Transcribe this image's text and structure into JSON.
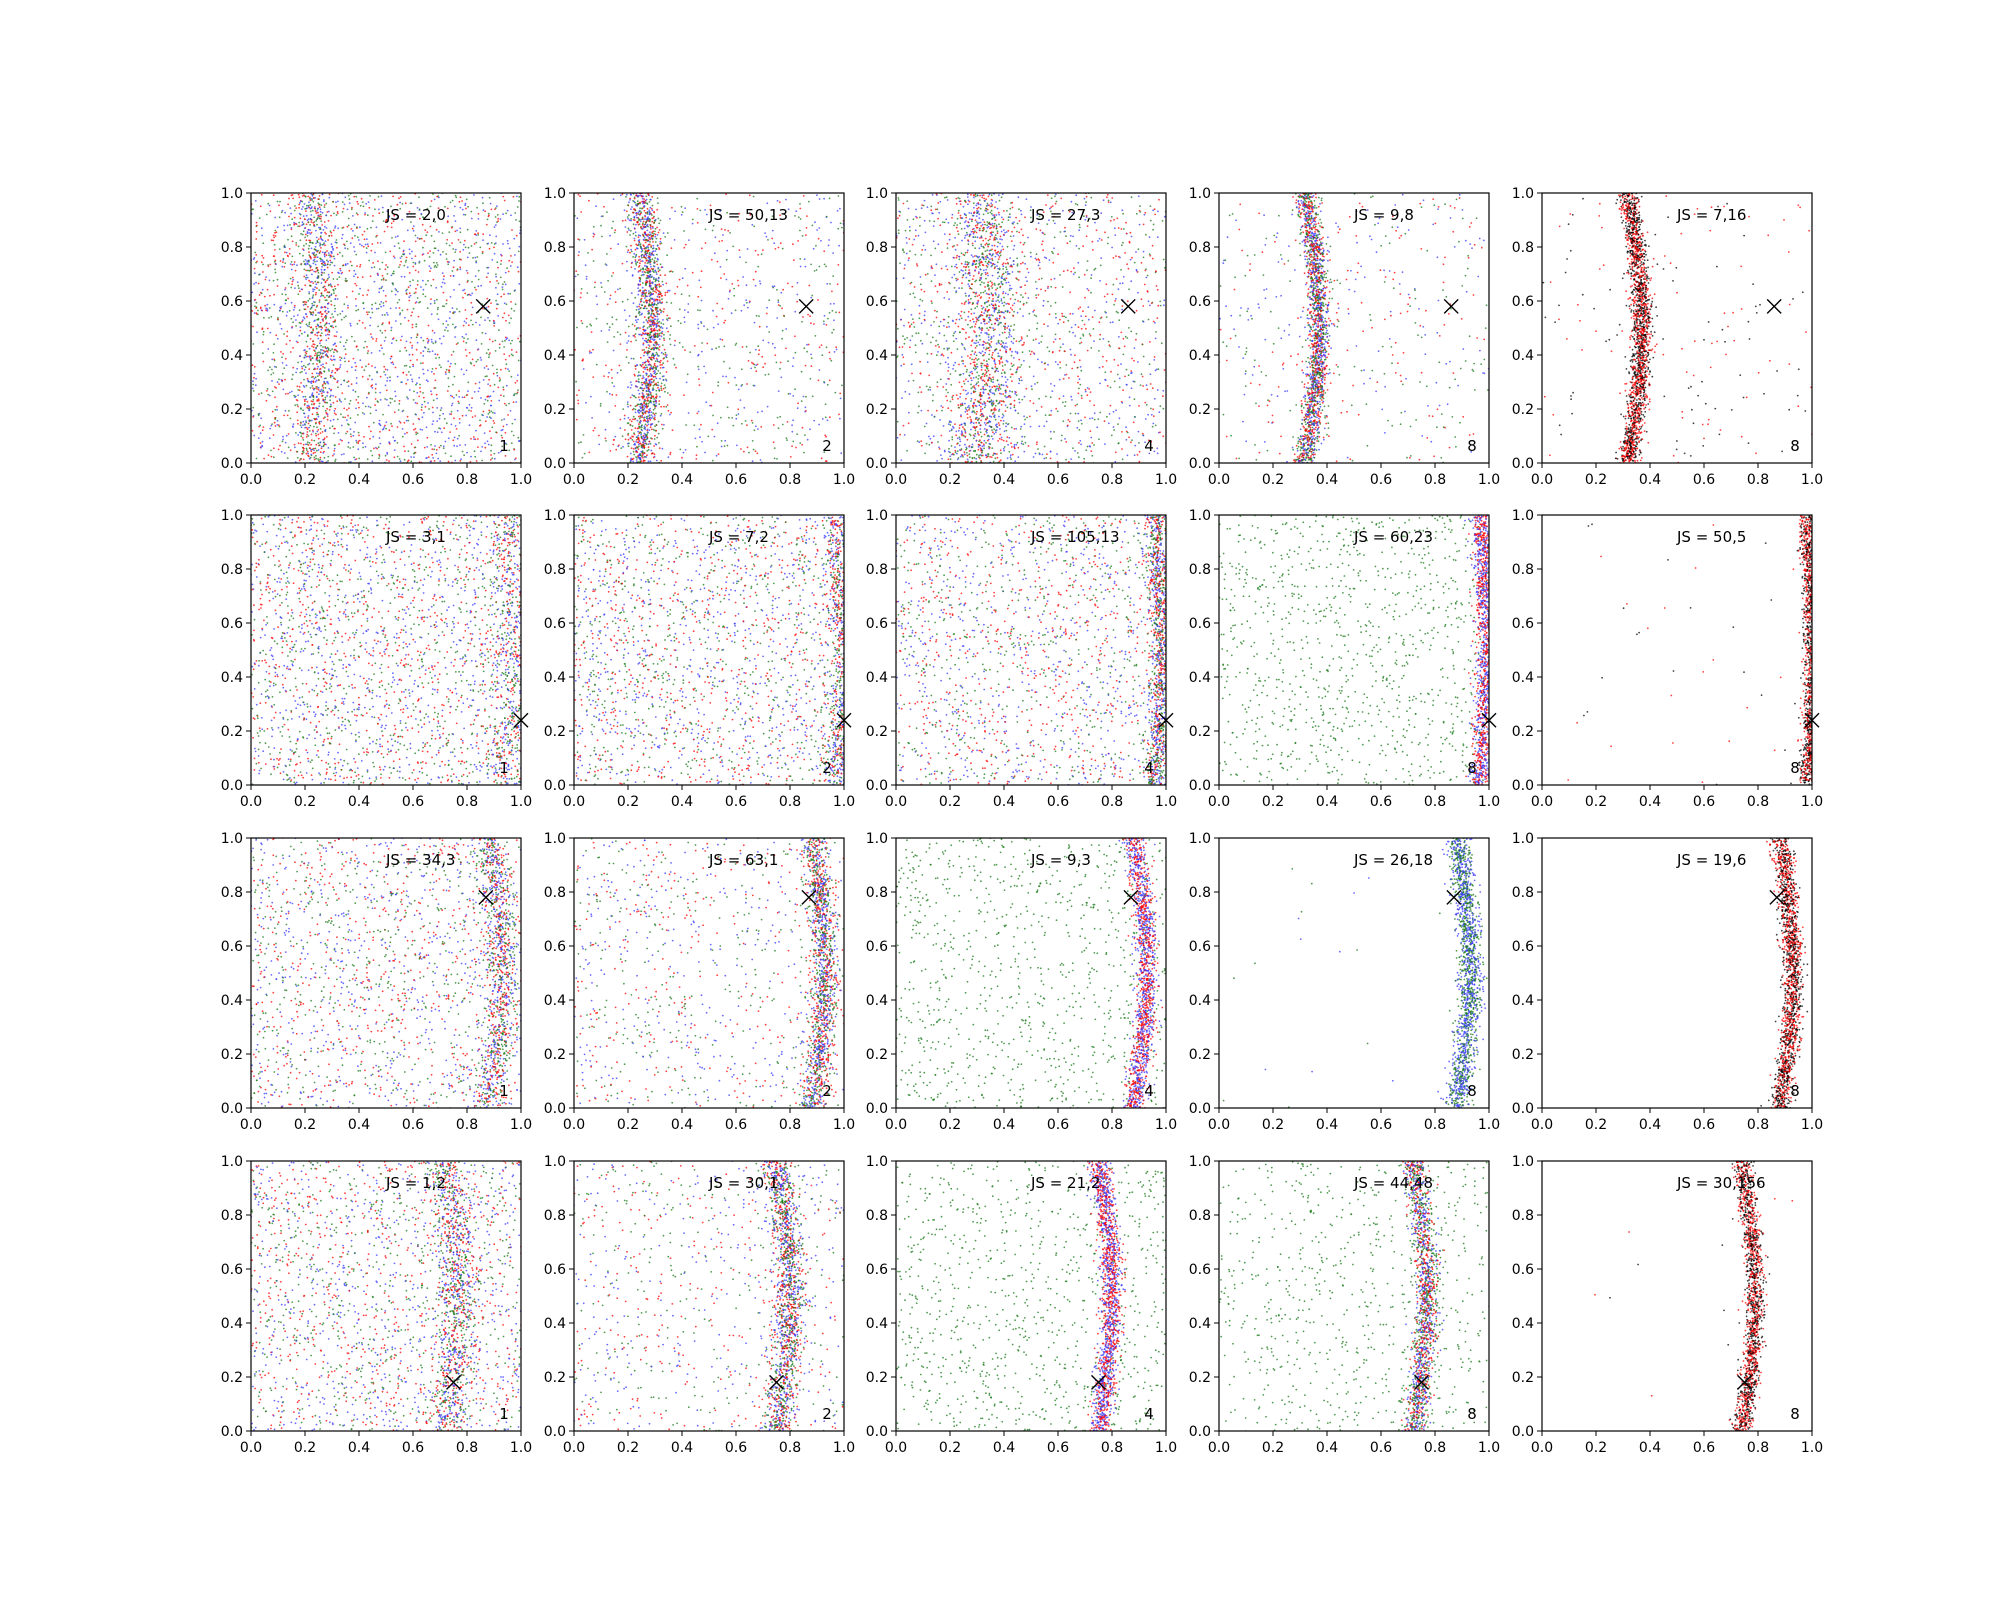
{
  "figure": {
    "rows": 4,
    "cols": 5
  },
  "chart_data": [
    {
      "type": "scatter",
      "row": 0,
      "col": 0,
      "label": "JS = 2,0",
      "corner_label": "1",
      "marker": {
        "x": 0.86,
        "y": 0.58
      },
      "curve": {
        "center": 0.22,
        "amp": 0.04,
        "width": 0.035
      },
      "palette": [
        "green",
        "blue",
        "red"
      ],
      "counts": {
        "band": 800,
        "noise": 2100
      },
      "xlim": [
        0,
        1
      ],
      "ylim": [
        0,
        1
      ],
      "xticks": [
        "0.0",
        "0.2",
        "0.4",
        "0.6",
        "0.8",
        "1.0"
      ],
      "yticks": [
        "0.0",
        "0.2",
        "0.4",
        "0.6",
        "0.8",
        "1.0"
      ]
    },
    {
      "type": "scatter",
      "row": 0,
      "col": 1,
      "label": "JS = 50,13",
      "corner_label": "2",
      "marker": {
        "x": 0.86,
        "y": 0.58
      },
      "curve": {
        "center": 0.24,
        "amp": 0.05,
        "width": 0.028
      },
      "palette": [
        "blue",
        "green",
        "red"
      ],
      "counts": {
        "band": 1500,
        "noise": 800
      },
      "xlim": [
        0,
        1
      ],
      "ylim": [
        0,
        1
      ],
      "xticks": [
        "0.0",
        "0.2",
        "0.4",
        "0.6",
        "0.8",
        "1.0"
      ],
      "yticks": [
        "0.0",
        "0.2",
        "0.4",
        "0.6",
        "0.8",
        "1.0"
      ]
    },
    {
      "type": "scatter",
      "row": 0,
      "col": 2,
      "label": "JS = 27,3",
      "corner_label": "4",
      "marker": {
        "x": 0.86,
        "y": 0.58
      },
      "curve": {
        "center": 0.3,
        "amp": 0.05,
        "width": 0.06
      },
      "palette": [
        "blue",
        "red",
        "green"
      ],
      "counts": {
        "band": 1300,
        "noise": 1300
      },
      "xlim": [
        0,
        1
      ],
      "ylim": [
        0,
        1
      ],
      "xticks": [
        "0.0",
        "0.2",
        "0.4",
        "0.6",
        "0.8",
        "1.0"
      ],
      "yticks": [
        "0.0",
        "0.2",
        "0.4",
        "0.6",
        "0.8",
        "1.0"
      ]
    },
    {
      "type": "scatter",
      "row": 0,
      "col": 3,
      "label": "JS = 9,8",
      "corner_label": "8",
      "marker": {
        "x": 0.86,
        "y": 0.58
      },
      "curve": {
        "center": 0.32,
        "amp": 0.05,
        "width": 0.02
      },
      "palette": [
        "red",
        "blue",
        "green"
      ],
      "counts": {
        "band": 1800,
        "noise": 450
      },
      "xlim": [
        0,
        1
      ],
      "ylim": [
        0,
        1
      ],
      "xticks": [
        "0.0",
        "0.2",
        "0.4",
        "0.6",
        "0.8",
        "1.0"
      ],
      "yticks": [
        "0.0",
        "0.2",
        "0.4",
        "0.6",
        "0.8",
        "1.0"
      ]
    },
    {
      "type": "scatter",
      "row": 0,
      "col": 4,
      "label": "JS = 7,16",
      "corner_label": "8",
      "marker": {
        "x": 0.86,
        "y": 0.58
      },
      "curve": {
        "center": 0.32,
        "amp": 0.05,
        "width": 0.018
      },
      "palette": [
        "red",
        "black"
      ],
      "counts": {
        "band": 1900,
        "noise": 170
      },
      "xlim": [
        0,
        1
      ],
      "ylim": [
        0,
        1
      ],
      "xticks": [
        "0.0",
        "0.2",
        "0.4",
        "0.6",
        "0.8",
        "1.0"
      ],
      "yticks": [
        "0.0",
        "0.2",
        "0.4",
        "0.6",
        "0.8",
        "1.0"
      ]
    },
    {
      "type": "scatter",
      "row": 1,
      "col": 0,
      "label": "JS = 3,1",
      "corner_label": "1",
      "marker": {
        "x": 1.0,
        "y": 0.24
      },
      "curve": {
        "center": 0.94,
        "amp": 0.03,
        "width": 0.04
      },
      "palette": [
        "green",
        "blue",
        "red"
      ],
      "counts": {
        "band": 600,
        "noise": 2200
      },
      "xlim": [
        0,
        1
      ],
      "ylim": [
        0,
        1
      ],
      "xticks": [
        "0.0",
        "0.2",
        "0.4",
        "0.6",
        "0.8",
        "1.0"
      ],
      "yticks": [
        "0.0",
        "0.2",
        "0.4",
        "0.6",
        "0.8",
        "1.0"
      ]
    },
    {
      "type": "scatter",
      "row": 1,
      "col": 1,
      "label": "JS = 7,2",
      "corner_label": "2",
      "marker": {
        "x": 1.0,
        "y": 0.24
      },
      "curve": {
        "center": 0.97,
        "amp": 0.02,
        "width": 0.025
      },
      "palette": [
        "red",
        "green",
        "blue"
      ],
      "counts": {
        "band": 700,
        "noise": 2000
      },
      "xlim": [
        0,
        1
      ],
      "ylim": [
        0,
        1
      ],
      "xticks": [
        "0.0",
        "0.2",
        "0.4",
        "0.6",
        "0.8",
        "1.0"
      ],
      "yticks": [
        "0.0",
        "0.2",
        "0.4",
        "0.6",
        "0.8",
        "1.0"
      ]
    },
    {
      "type": "scatter",
      "row": 1,
      "col": 2,
      "label": "JS = 105,13",
      "corner_label": "4",
      "marker": {
        "x": 1.0,
        "y": 0.24
      },
      "curve": {
        "center": 0.96,
        "amp": 0.02,
        "width": 0.02
      },
      "palette": [
        "red",
        "green",
        "blue"
      ],
      "counts": {
        "band": 1100,
        "noise": 1700
      },
      "xlim": [
        0,
        1
      ],
      "ylim": [
        0,
        1
      ],
      "xticks": [
        "0.0",
        "0.2",
        "0.4",
        "0.6",
        "0.8",
        "1.0"
      ],
      "yticks": [
        "0.0",
        "0.2",
        "0.4",
        "0.6",
        "0.8",
        "1.0"
      ]
    },
    {
      "type": "scatter",
      "row": 1,
      "col": 3,
      "label": "JS = 60,23",
      "corner_label": "8",
      "marker": {
        "x": 1.0,
        "y": 0.24
      },
      "curve": {
        "center": 0.97,
        "amp": 0.02,
        "width": 0.02
      },
      "palette": [
        "red",
        "blue"
      ],
      "counts": {
        "band": 1300,
        "noise": 1000
      },
      "noise_palette": [
        "green"
      ],
      "xlim": [
        0,
        1
      ],
      "ylim": [
        0,
        1
      ],
      "xticks": [
        "0.0",
        "0.2",
        "0.4",
        "0.6",
        "0.8",
        "1.0"
      ],
      "yticks": [
        "0.0",
        "0.2",
        "0.4",
        "0.6",
        "0.8",
        "1.0"
      ]
    },
    {
      "type": "scatter",
      "row": 1,
      "col": 4,
      "label": "JS = 50,5",
      "corner_label": "8",
      "marker": {
        "x": 1.0,
        "y": 0.24
      },
      "curve": {
        "center": 0.98,
        "amp": 0.02,
        "width": 0.016
      },
      "palette": [
        "red",
        "black"
      ],
      "counts": {
        "band": 1400,
        "noise": 40
      },
      "xlim": [
        0,
        1
      ],
      "ylim": [
        0,
        1
      ],
      "xticks": [
        "0.0",
        "0.2",
        "0.4",
        "0.6",
        "0.8",
        "1.0"
      ],
      "yticks": [
        "0.0",
        "0.2",
        "0.4",
        "0.6",
        "0.8",
        "1.0"
      ]
    },
    {
      "type": "scatter",
      "row": 2,
      "col": 0,
      "label": "JS = 34,3",
      "corner_label": "1",
      "marker": {
        "x": 0.87,
        "y": 0.78
      },
      "curve": {
        "center": 0.88,
        "amp": 0.05,
        "width": 0.03
      },
      "palette": [
        "green",
        "blue",
        "red"
      ],
      "counts": {
        "band": 1000,
        "noise": 1700
      },
      "xlim": [
        0,
        1
      ],
      "ylim": [
        0,
        1
      ],
      "xticks": [
        "0.0",
        "0.2",
        "0.4",
        "0.6",
        "0.8",
        "1.0"
      ],
      "yticks": [
        "0.0",
        "0.2",
        "0.4",
        "0.6",
        "0.8",
        "1.0"
      ]
    },
    {
      "type": "scatter",
      "row": 2,
      "col": 1,
      "label": "JS = 63,1",
      "corner_label": "2",
      "marker": {
        "x": 0.87,
        "y": 0.78
      },
      "curve": {
        "center": 0.88,
        "amp": 0.05,
        "width": 0.025
      },
      "palette": [
        "red",
        "green",
        "blue"
      ],
      "counts": {
        "band": 1400,
        "noise": 900
      },
      "xlim": [
        0,
        1
      ],
      "ylim": [
        0,
        1
      ],
      "xticks": [
        "0.0",
        "0.2",
        "0.4",
        "0.6",
        "0.8",
        "1.0"
      ],
      "yticks": [
        "0.0",
        "0.2",
        "0.4",
        "0.6",
        "0.8",
        "1.0"
      ]
    },
    {
      "type": "scatter",
      "row": 2,
      "col": 2,
      "label": "JS = 9,3",
      "corner_label": "4",
      "marker": {
        "x": 0.87,
        "y": 0.78
      },
      "curve": {
        "center": 0.88,
        "amp": 0.05,
        "width": 0.02
      },
      "palette": [
        "red",
        "blue"
      ],
      "counts": {
        "band": 1400,
        "noise": 900
      },
      "noise_palette": [
        "green"
      ],
      "xlim": [
        0,
        1
      ],
      "ylim": [
        0,
        1
      ],
      "xticks": [
        "0.0",
        "0.2",
        "0.4",
        "0.6",
        "0.8",
        "1.0"
      ],
      "yticks": [
        "0.0",
        "0.2",
        "0.4",
        "0.6",
        "0.8",
        "1.0"
      ]
    },
    {
      "type": "scatter",
      "row": 2,
      "col": 3,
      "label": "JS = 26,18",
      "corner_label": "8",
      "marker": {
        "x": 0.87,
        "y": 0.78
      },
      "curve": {
        "center": 0.88,
        "amp": 0.05,
        "width": 0.022
      },
      "palette": [
        "green",
        "blue"
      ],
      "counts": {
        "band": 1600,
        "noise": 20
      },
      "xlim": [
        0,
        1
      ],
      "ylim": [
        0,
        1
      ],
      "xticks": [
        "0.0",
        "0.2",
        "0.4",
        "0.6",
        "0.8",
        "1.0"
      ],
      "yticks": [
        "0.0",
        "0.2",
        "0.4",
        "0.6",
        "0.8",
        "1.0"
      ]
    },
    {
      "type": "scatter",
      "row": 2,
      "col": 4,
      "label": "JS = 19,6",
      "corner_label": "8",
      "marker": {
        "x": 0.87,
        "y": 0.78
      },
      "curve": {
        "center": 0.88,
        "amp": 0.05,
        "width": 0.018
      },
      "palette": [
        "red",
        "black"
      ],
      "counts": {
        "band": 1700,
        "noise": 0
      },
      "xlim": [
        0,
        1
      ],
      "ylim": [
        0,
        1
      ],
      "xticks": [
        "0.0",
        "0.2",
        "0.4",
        "0.6",
        "0.8",
        "1.0"
      ],
      "yticks": [
        "0.0",
        "0.2",
        "0.4",
        "0.6",
        "0.8",
        "1.0"
      ]
    },
    {
      "type": "scatter",
      "row": 3,
      "col": 0,
      "label": "JS = 1,2",
      "corner_label": "1",
      "marker": {
        "x": 0.75,
        "y": 0.18
      },
      "curve": {
        "center": 0.72,
        "amp": 0.05,
        "width": 0.04
      },
      "palette": [
        "green",
        "blue",
        "red"
      ],
      "counts": {
        "band": 1000,
        "noise": 1900
      },
      "xlim": [
        0,
        1
      ],
      "ylim": [
        0,
        1
      ],
      "xticks": [
        "0.0",
        "0.2",
        "0.4",
        "0.6",
        "0.8",
        "1.0"
      ],
      "yticks": [
        "0.0",
        "0.2",
        "0.4",
        "0.6",
        "0.8",
        "1.0"
      ]
    },
    {
      "type": "scatter",
      "row": 3,
      "col": 1,
      "label": "JS = 30,1",
      "corner_label": "2",
      "marker": {
        "x": 0.75,
        "y": 0.18
      },
      "curve": {
        "center": 0.75,
        "amp": 0.05,
        "width": 0.028
      },
      "palette": [
        "red",
        "green",
        "blue"
      ],
      "counts": {
        "band": 1500,
        "noise": 800
      },
      "xlim": [
        0,
        1
      ],
      "ylim": [
        0,
        1
      ],
      "xticks": [
        "0.0",
        "0.2",
        "0.4",
        "0.6",
        "0.8",
        "1.0"
      ],
      "yticks": [
        "0.0",
        "0.2",
        "0.4",
        "0.6",
        "0.8",
        "1.0"
      ]
    },
    {
      "type": "scatter",
      "row": 3,
      "col": 2,
      "label": "JS = 21,2",
      "corner_label": "4",
      "marker": {
        "x": 0.75,
        "y": 0.18
      },
      "curve": {
        "center": 0.75,
        "amp": 0.05,
        "width": 0.02
      },
      "palette": [
        "red",
        "blue"
      ],
      "counts": {
        "band": 1500,
        "noise": 900
      },
      "noise_palette": [
        "green"
      ],
      "xlim": [
        0,
        1
      ],
      "ylim": [
        0,
        1
      ],
      "xticks": [
        "0.0",
        "0.2",
        "0.4",
        "0.6",
        "0.8",
        "1.0"
      ],
      "yticks": [
        "0.0",
        "0.2",
        "0.4",
        "0.6",
        "0.8",
        "1.0"
      ]
    },
    {
      "type": "scatter",
      "row": 3,
      "col": 3,
      "label": "JS = 44,48",
      "corner_label": "8",
      "marker": {
        "x": 0.75,
        "y": 0.18
      },
      "curve": {
        "center": 0.72,
        "amp": 0.05,
        "width": 0.022
      },
      "palette": [
        "red",
        "blue",
        "green"
      ],
      "counts": {
        "band": 1500,
        "noise": 700
      },
      "noise_palette": [
        "green"
      ],
      "xlim": [
        0,
        1
      ],
      "ylim": [
        0,
        1
      ],
      "xticks": [
        "0.0",
        "0.2",
        "0.4",
        "0.6",
        "0.8",
        "1.0"
      ],
      "yticks": [
        "0.0",
        "0.2",
        "0.4",
        "0.6",
        "0.8",
        "1.0"
      ]
    },
    {
      "type": "scatter",
      "row": 3,
      "col": 4,
      "label": "JS = 30,156",
      "corner_label": "8",
      "marker": {
        "x": 0.75,
        "y": 0.18
      },
      "curve": {
        "center": 0.74,
        "amp": 0.05,
        "width": 0.018
      },
      "palette": [
        "black",
        "red"
      ],
      "counts": {
        "band": 1500,
        "noise": 10
      },
      "xlim": [
        0,
        1
      ],
      "ylim": [
        0,
        1
      ],
      "xticks": [
        "0.0",
        "0.2",
        "0.4",
        "0.6",
        "0.8",
        "1.0"
      ],
      "yticks": [
        "0.0",
        "0.2",
        "0.4",
        "0.6",
        "0.8",
        "1.0"
      ]
    }
  ],
  "colors": {
    "green": "#1a7a1a",
    "blue": "#3a3aff",
    "red": "#ff0000",
    "black": "#000000",
    "axis": "#000000",
    "background": "#ffffff"
  }
}
